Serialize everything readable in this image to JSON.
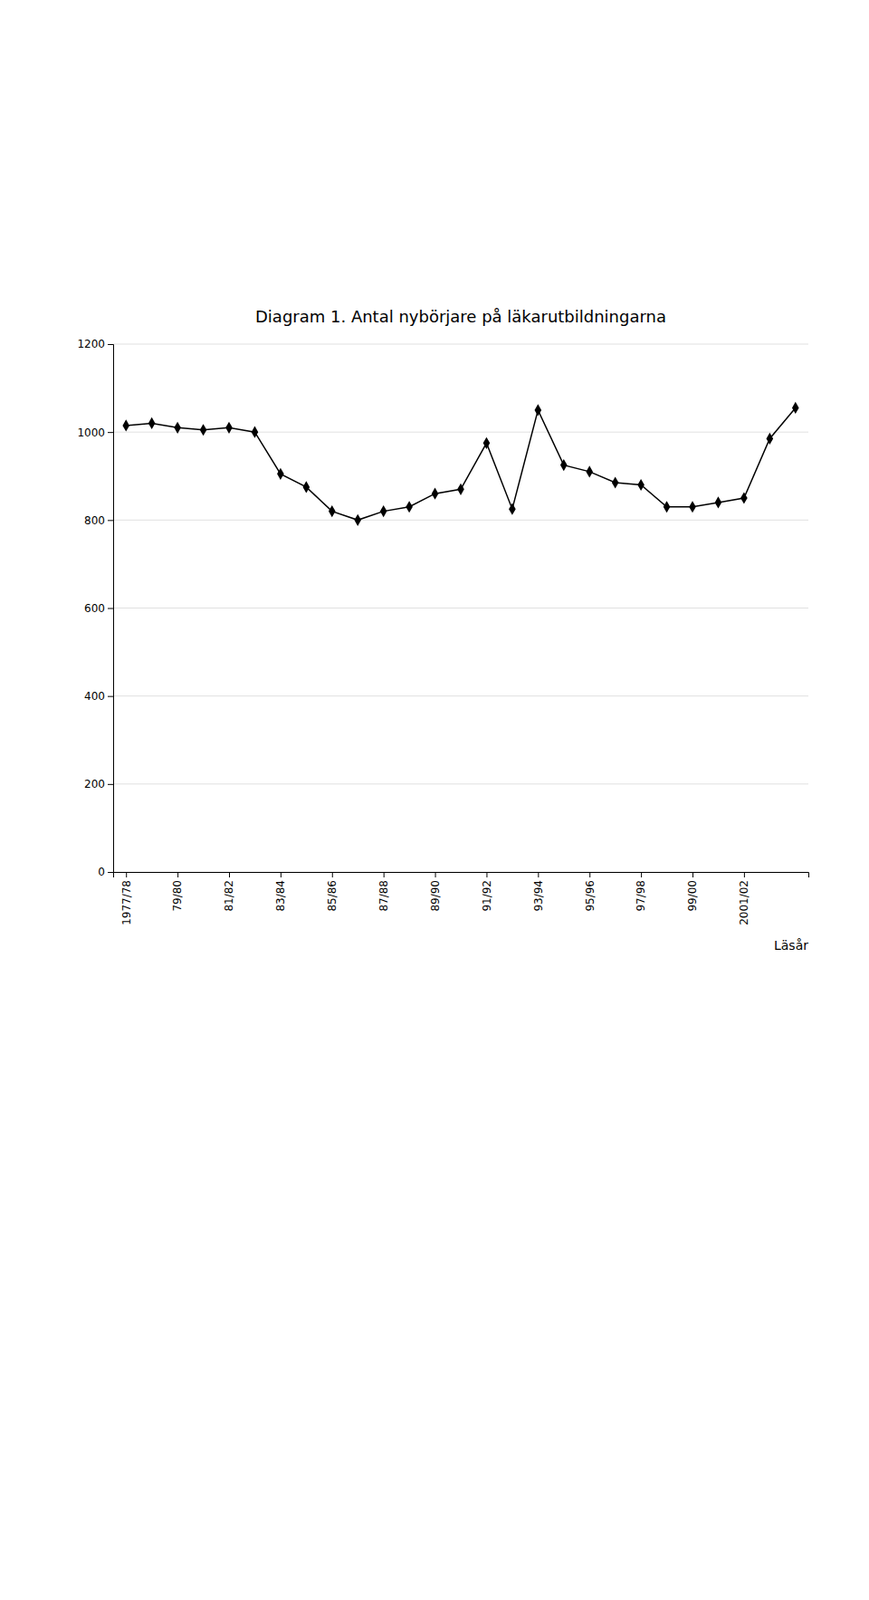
{
  "chart_data": {
    "type": "line",
    "title": "Diagram 1.  Antal nybörjare på  läkarutbildningarna",
    "xlabel": "Läsår",
    "categories": [
      "1977/78",
      null,
      "79/80",
      null,
      "81/82",
      null,
      "83/84",
      null,
      "85/86",
      null,
      "87/88",
      null,
      "89/90",
      null,
      "91/92",
      null,
      "93/94",
      null,
      "95/96",
      null,
      "97/98",
      null,
      "99/00",
      null,
      "2001/02",
      null,
      null
    ],
    "values": [
      1015,
      1020,
      1010,
      1005,
      1010,
      1000,
      905,
      875,
      820,
      800,
      820,
      830,
      860,
      870,
      975,
      825,
      1050,
      925,
      910,
      885,
      880,
      830,
      830,
      840,
      850,
      985,
      1055
    ],
    "ylim": [
      0,
      1200
    ],
    "yticks": [
      0,
      200,
      400,
      600,
      800,
      1000,
      1200
    ],
    "color": "#000000",
    "marker": "diamond",
    "grid": true
  }
}
